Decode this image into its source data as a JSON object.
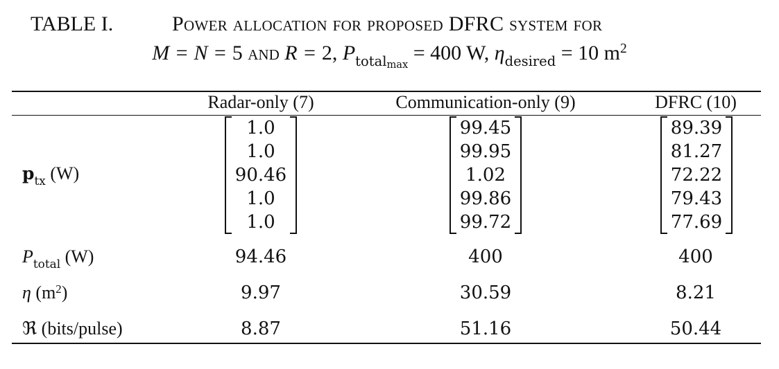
{
  "caption": {
    "label": "TABLE I.",
    "title": "Power allocation for proposed DFRC system for",
    "line2": {
      "m_eq": "M = N =",
      "m_val": "5",
      "and": "and",
      "r_eq": "R =",
      "r_val": "2,",
      "p_sym": "P",
      "p_sub": "total",
      "p_subsub": "max",
      "p_val": "= 400 W,",
      "eta_sym": "η",
      "eta_sub": "desired",
      "eta_val": "= 10 m",
      "eta_exp": "2"
    }
  },
  "table": {
    "columns": [
      "Radar-only (7)",
      "Communication-only (9)",
      "DFRC (10)"
    ],
    "row_ptx": {
      "label": "p",
      "label_sub": "tx",
      "unit": "(W)",
      "radar": [
        "1.0",
        "1.0",
        "90.46",
        "1.0",
        "1.0"
      ],
      "comm": [
        "99.45",
        "99.95",
        "1.02",
        "99.86",
        "99.72"
      ],
      "dfrc": [
        "89.39",
        "81.27",
        "72.22",
        "79.43",
        "77.69"
      ]
    },
    "row_ptotal": {
      "sym": "P",
      "sub": "total",
      "unit": "(W)",
      "values": [
        "94.46",
        "400",
        "400"
      ]
    },
    "row_eta": {
      "sym": "η",
      "unit_open": "(m",
      "unit_exp": "2",
      "unit_close": ")",
      "values": [
        "9.97",
        "30.59",
        "8.21"
      ]
    },
    "row_rate": {
      "sym": "ℜ",
      "unit": "(bits/pulse)",
      "values": [
        "8.87",
        "51.16",
        "50.44"
      ]
    }
  }
}
